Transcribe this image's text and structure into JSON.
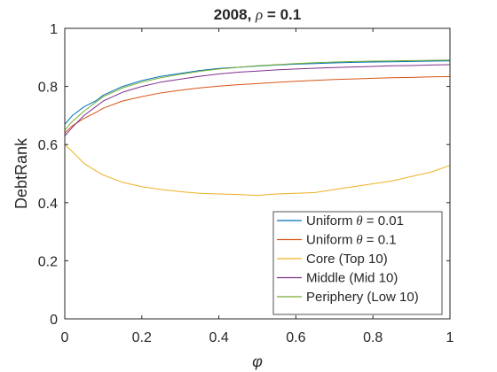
{
  "chart_data": {
    "type": "line",
    "title": {
      "prefix": "2008, ",
      "symbol": "ρ",
      "suffix": " = 0.1"
    },
    "xlabel": "φ",
    "ylabel": "DebtRank",
    "xlim": [
      0,
      1
    ],
    "ylim": [
      0,
      1
    ],
    "xticks": [
      0,
      0.2,
      0.4,
      0.6,
      0.8,
      1
    ],
    "xtick_labels": [
      "0",
      "0.2",
      "0.4",
      "0.6",
      "0.8",
      "1"
    ],
    "yticks": [
      0,
      0.2,
      0.4,
      0.6,
      0.8,
      1
    ],
    "ytick_labels": [
      "0",
      "0.2",
      "0.4",
      "0.6",
      "0.8",
      "1"
    ],
    "grid": false,
    "legend_position": "bottom-right",
    "x": [
      0,
      0.02,
      0.05,
      0.08,
      0.1,
      0.15,
      0.2,
      0.25,
      0.3,
      0.35,
      0.4,
      0.45,
      0.5,
      0.55,
      0.6,
      0.65,
      0.7,
      0.75,
      0.8,
      0.85,
      0.9,
      0.95,
      1.0
    ],
    "series": [
      {
        "name": "Uniform",
        "math": "θ",
        "suffix": " = 0.01",
        "color": "#0072BD",
        "values": [
          0.67,
          0.7,
          0.73,
          0.75,
          0.77,
          0.8,
          0.82,
          0.835,
          0.845,
          0.855,
          0.862,
          0.866,
          0.87,
          0.874,
          0.877,
          0.879,
          0.881,
          0.883,
          0.884,
          0.885,
          0.886,
          0.887,
          0.888
        ]
      },
      {
        "name": "Uniform",
        "math": "θ",
        "suffix": " = 0.1",
        "color": "#D95319",
        "values": [
          0.64,
          0.665,
          0.69,
          0.71,
          0.725,
          0.75,
          0.765,
          0.778,
          0.787,
          0.795,
          0.801,
          0.806,
          0.81,
          0.814,
          0.818,
          0.821,
          0.824,
          0.826,
          0.828,
          0.83,
          0.831,
          0.833,
          0.834
        ]
      },
      {
        "name": "Core (Top 10)",
        "color": "#EDB120",
        "values": [
          0.6,
          0.575,
          0.535,
          0.51,
          0.495,
          0.47,
          0.455,
          0.445,
          0.438,
          0.432,
          0.43,
          0.428,
          0.425,
          0.43,
          0.432,
          0.435,
          0.445,
          0.455,
          0.465,
          0.475,
          0.49,
          0.505,
          0.528
        ]
      },
      {
        "name": "Middle (Mid 10)",
        "color": "#7E2F8E",
        "values": [
          0.63,
          0.66,
          0.7,
          0.73,
          0.75,
          0.78,
          0.8,
          0.815,
          0.825,
          0.835,
          0.843,
          0.849,
          0.853,
          0.857,
          0.86,
          0.863,
          0.865,
          0.867,
          0.869,
          0.871,
          0.872,
          0.874,
          0.875
        ]
      },
      {
        "name": "Periphery (Low 10)",
        "color": "#77AC30",
        "values": [
          0.65,
          0.68,
          0.715,
          0.745,
          0.765,
          0.795,
          0.815,
          0.83,
          0.842,
          0.852,
          0.86,
          0.866,
          0.871,
          0.875,
          0.879,
          0.882,
          0.884,
          0.886,
          0.887,
          0.888,
          0.889,
          0.89,
          0.891
        ]
      }
    ]
  }
}
